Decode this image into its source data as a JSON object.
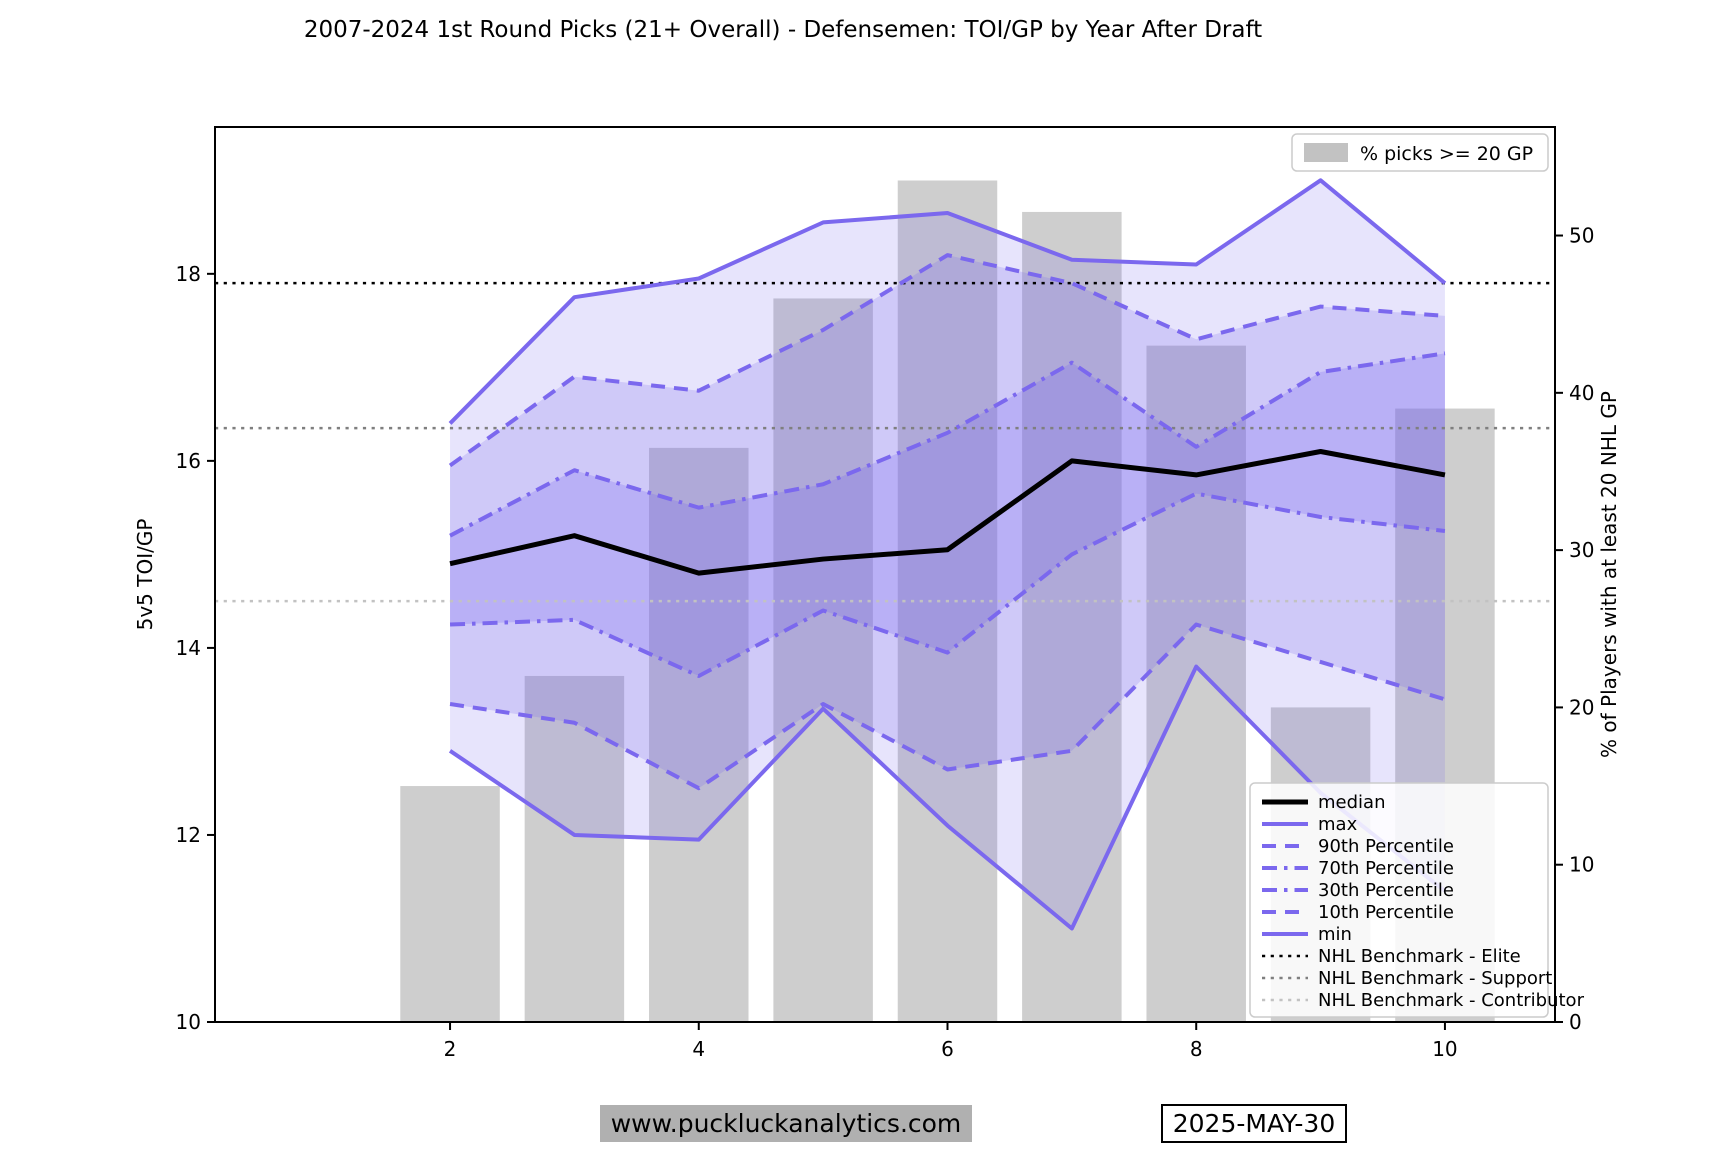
{
  "footer": {
    "website": "www.puckluckanalytics.com",
    "date": "2025-MAY-30"
  },
  "chart_data": {
    "type": "line",
    "title": "2007-2024 1st Round Picks (21+ Overall) - Defensemen: TOI/GP by Year After Draft",
    "xlabel": "",
    "ylabel_left": "5v5 TOI/GP",
    "ylabel_right": "% of Players with at least 20 NHL GP",
    "x": [
      2,
      3,
      4,
      5,
      6,
      7,
      8,
      9,
      10
    ],
    "xticks": [
      2,
      4,
      6,
      8,
      10
    ],
    "yticks_left": [
      10,
      12,
      14,
      16,
      18
    ],
    "yticks_right": [
      0,
      10,
      20,
      30,
      40,
      50
    ],
    "ylim_left": [
      10,
      19.57
    ],
    "ylim_right": [
      0,
      56.9
    ],
    "grid": false,
    "accent_color": "#7B68EE",
    "series": [
      {
        "name": "median",
        "color": "#000000",
        "dash": "solid",
        "width": 5,
        "values": [
          14.9,
          15.2,
          14.8,
          14.95,
          15.05,
          16.0,
          15.85,
          16.1,
          15.85
        ]
      },
      {
        "name": "max",
        "color": "#7B68EE",
        "dash": "solid",
        "width": 4,
        "values": [
          16.4,
          17.75,
          17.95,
          18.55,
          18.65,
          18.15,
          18.1,
          19.0,
          17.9
        ]
      },
      {
        "name": "90th Percentile",
        "color": "#7B68EE",
        "dash": "dashed",
        "width": 4,
        "values": [
          15.95,
          16.9,
          16.75,
          17.4,
          18.2,
          17.9,
          17.3,
          17.65,
          17.55
        ]
      },
      {
        "name": "70th Percentile",
        "color": "#7B68EE",
        "dash": "dashdot",
        "width": 4,
        "values": [
          15.2,
          15.9,
          15.5,
          15.75,
          16.3,
          17.05,
          16.15,
          16.95,
          17.15
        ]
      },
      {
        "name": "30th Percentile",
        "color": "#7B68EE",
        "dash": "dashdot",
        "width": 4,
        "values": [
          14.25,
          14.3,
          13.7,
          14.4,
          13.95,
          15.0,
          15.65,
          15.4,
          15.25
        ]
      },
      {
        "name": "10th Percentile",
        "color": "#7B68EE",
        "dash": "dashed",
        "width": 4,
        "values": [
          13.4,
          13.2,
          12.5,
          13.4,
          12.7,
          12.9,
          14.25,
          13.85,
          13.45
        ]
      },
      {
        "name": "min",
        "color": "#7B68EE",
        "dash": "solid",
        "width": 4,
        "values": [
          12.9,
          12.0,
          11.95,
          13.35,
          12.1,
          11.0,
          13.8,
          12.45,
          11.4
        ]
      }
    ],
    "bands": [
      {
        "lower": "min",
        "upper": "max",
        "opacity": 0.18
      },
      {
        "lower": "10th Percentile",
        "upper": "90th Percentile",
        "opacity": 0.22
      },
      {
        "lower": "30th Percentile",
        "upper": "70th Percentile",
        "opacity": 0.26
      }
    ],
    "benchmarks": [
      {
        "name": "NHL Benchmark - Elite",
        "value": 17.9,
        "color": "#000000"
      },
      {
        "name": "NHL Benchmark - Support",
        "value": 16.35,
        "color": "#7f7f7f"
      },
      {
        "name": "NHL Benchmark - Contributor",
        "value": 14.5,
        "color": "#c2c2c2"
      }
    ],
    "bars": {
      "label": "% picks >= 20 GP",
      "color": "#c2c2c2",
      "opacity": 0.8,
      "axis": "right",
      "values": [
        15,
        22,
        36.5,
        46,
        53.5,
        51.5,
        43,
        20,
        39
      ]
    },
    "legend_bars_position": "upper right",
    "legend_lines_position": "lower right"
  }
}
